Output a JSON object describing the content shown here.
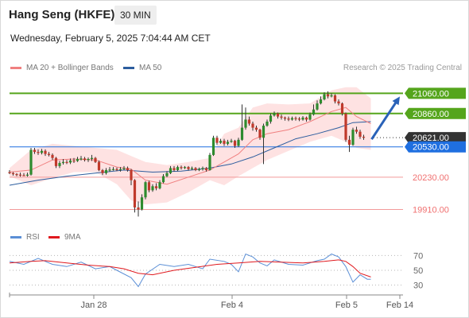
{
  "header": {
    "title": "Hang Seng (HKFE)",
    "timeframe": "30 MIN",
    "datetime": "Wednesday, February 5, 2025 7:04:44 AM CET"
  },
  "copyright": "Research © 2025 Trading Central",
  "colors": {
    "bull": "#2e8b2e",
    "bear": "#c0392b",
    "wick": "#333333",
    "ma20": "#f08080",
    "ma50": "#2c5d9e",
    "band": "#fdd8d8",
    "resistance": "#55a51c",
    "pivot": "#1f6fe0",
    "support": "#f07070",
    "last": "#333333",
    "arrow": "#2a62b8",
    "rsi": "#5b8fd6",
    "rsi_ma": "#e0191e"
  },
  "chart_data": [
    {
      "type": "candlestick",
      "timeframe": "30 MIN",
      "ylim": [
        19780,
        21260
      ],
      "x_ticks": [
        "Jan 28",
        "Feb 4",
        "Feb 5",
        "Feb 14"
      ],
      "legend": [
        {
          "label": "MA 20 + Bollinger Bands",
          "color": "#f08080"
        },
        {
          "label": "MA 50",
          "color": "#2c5d9e"
        }
      ],
      "levels": [
        {
          "value": 21060,
          "label": "21060.00",
          "kind": "resistance"
        },
        {
          "value": 20860,
          "label": "20860.00",
          "kind": "resistance"
        },
        {
          "value": 20621,
          "label": "20621.00",
          "kind": "last"
        },
        {
          "value": 20530,
          "label": "20530.00",
          "kind": "pivot"
        },
        {
          "value": 20230,
          "label": "20230.00",
          "kind": "support"
        },
        {
          "value": 19910,
          "label": "19910.00",
          "kind": "support"
        }
      ],
      "candles": [
        [
          20280,
          20270,
          20300,
          20260
        ],
        [
          20270,
          20260,
          20280,
          20245
        ],
        [
          20260,
          20255,
          20270,
          20240
        ],
        [
          20255,
          20250,
          20275,
          20235
        ],
        [
          20250,
          20245,
          20270,
          20240
        ],
        [
          20245,
          20255,
          20275,
          20235
        ],
        [
          20255,
          20500,
          20520,
          20245
        ],
        [
          20500,
          20480,
          20520,
          20460
        ],
        [
          20480,
          20470,
          20505,
          20450
        ],
        [
          20470,
          20490,
          20510,
          20455
        ],
        [
          20490,
          20460,
          20505,
          20440
        ],
        [
          20460,
          20450,
          20480,
          20435
        ],
        [
          20450,
          20420,
          20465,
          20400
        ],
        [
          20420,
          20340,
          20430,
          20320
        ],
        [
          20340,
          20370,
          20390,
          20320
        ],
        [
          20370,
          20380,
          20410,
          20355
        ],
        [
          20380,
          20375,
          20400,
          20360
        ],
        [
          20375,
          20395,
          20415,
          20360
        ],
        [
          20395,
          20390,
          20420,
          20370
        ],
        [
          20390,
          20410,
          20430,
          20380
        ],
        [
          20410,
          20415,
          20440,
          20395
        ],
        [
          20415,
          20400,
          20430,
          20385
        ],
        [
          20400,
          20410,
          20425,
          20380
        ],
        [
          20410,
          20420,
          20450,
          20390
        ],
        [
          20420,
          20380,
          20430,
          20370
        ],
        [
          20380,
          20300,
          20395,
          20290
        ],
        [
          20300,
          20270,
          20310,
          20250
        ],
        [
          20270,
          20300,
          20320,
          20255
        ],
        [
          20300,
          20305,
          20330,
          20285
        ],
        [
          20305,
          20310,
          20330,
          20295
        ],
        [
          20310,
          20300,
          20325,
          20290
        ],
        [
          20300,
          20310,
          20330,
          20285
        ],
        [
          20310,
          20320,
          20340,
          20300
        ],
        [
          20320,
          20300,
          20335,
          20285
        ],
        [
          20300,
          20200,
          20310,
          20150
        ],
        [
          20200,
          19930,
          20210,
          19880
        ],
        [
          19930,
          19910,
          19990,
          19840
        ],
        [
          19910,
          20030,
          20060,
          19900
        ],
        [
          20030,
          20180,
          20190,
          20010
        ],
        [
          20180,
          20100,
          20195,
          20080
        ],
        [
          20100,
          20140,
          20160,
          20085
        ],
        [
          20140,
          20120,
          20170,
          20100
        ],
        [
          20120,
          20180,
          20200,
          20110
        ],
        [
          20180,
          20240,
          20260,
          20170
        ],
        [
          20240,
          20270,
          20290,
          20230
        ],
        [
          20270,
          20320,
          20340,
          20260
        ],
        [
          20320,
          20300,
          20340,
          20285
        ],
        [
          20300,
          20330,
          20345,
          20290
        ],
        [
          20330,
          20320,
          20345,
          20305
        ],
        [
          20320,
          20330,
          20340,
          20310
        ],
        [
          20330,
          20310,
          20340,
          20295
        ],
        [
          20310,
          20320,
          20335,
          20300
        ],
        [
          20320,
          20300,
          20330,
          20290
        ],
        [
          20300,
          20310,
          20325,
          20290
        ],
        [
          20310,
          20320,
          20335,
          20295
        ],
        [
          20320,
          20300,
          20330,
          20285
        ],
        [
          20300,
          20450,
          20470,
          20295
        ],
        [
          20450,
          20620,
          20640,
          20440
        ],
        [
          20620,
          20570,
          20640,
          20550
        ],
        [
          20570,
          20590,
          20610,
          20560
        ],
        [
          20590,
          20560,
          20610,
          20540
        ],
        [
          20560,
          20580,
          20600,
          20545
        ],
        [
          20580,
          20590,
          20610,
          20570
        ],
        [
          20590,
          20540,
          20600,
          20520
        ],
        [
          20540,
          20600,
          20620,
          20530
        ],
        [
          20600,
          20720,
          20950,
          20590
        ],
        [
          20720,
          20800,
          20920,
          20700
        ],
        [
          20800,
          20760,
          20830,
          20740
        ],
        [
          20760,
          20720,
          20780,
          20690
        ],
        [
          20720,
          20700,
          20740,
          20680
        ],
        [
          20700,
          20620,
          20710,
          20600
        ],
        [
          20620,
          20740,
          20760,
          20360
        ],
        [
          20740,
          20780,
          20800,
          20730
        ],
        [
          20780,
          20840,
          20860,
          20760
        ],
        [
          20840,
          20860,
          20880,
          20830
        ],
        [
          20860,
          20830,
          20870,
          20810
        ],
        [
          20830,
          20820,
          20850,
          20800
        ],
        [
          20820,
          20810,
          20830,
          20790
        ],
        [
          20810,
          20800,
          20830,
          20785
        ],
        [
          20800,
          20815,
          20830,
          20790
        ],
        [
          20815,
          20810,
          20830,
          20790
        ],
        [
          20810,
          20800,
          20825,
          20785
        ],
        [
          20800,
          20820,
          20835,
          20790
        ],
        [
          20820,
          20800,
          20830,
          20780
        ],
        [
          20800,
          20850,
          20870,
          20790
        ],
        [
          20850,
          20900,
          20950,
          20840
        ],
        [
          20900,
          20960,
          20990,
          20890
        ],
        [
          20960,
          21000,
          21030,
          20950
        ],
        [
          21000,
          21050,
          21070,
          20990
        ],
        [
          21050,
          21030,
          21080,
          21010
        ],
        [
          21030,
          21040,
          21060,
          21020
        ],
        [
          21040,
          20980,
          21050,
          20960
        ],
        [
          20980,
          20960,
          21000,
          20940
        ],
        [
          20960,
          20860,
          20970,
          20840
        ],
        [
          20860,
          20600,
          20870,
          20580
        ],
        [
          20600,
          20550,
          20640,
          20480
        ],
        [
          20550,
          20700,
          20720,
          20540
        ],
        [
          20700,
          20680,
          20730,
          20660
        ],
        [
          20680,
          20630,
          20700,
          20610
        ],
        [
          20630,
          20621,
          20650,
          20600
        ]
      ],
      "ma20": [
        [
          0,
          20280
        ],
        [
          6,
          20300
        ],
        [
          12,
          20400
        ],
        [
          18,
          20410
        ],
        [
          24,
          20400
        ],
        [
          30,
          20330
        ],
        [
          34,
          20310
        ],
        [
          38,
          20200
        ],
        [
          44,
          20160
        ],
        [
          50,
          20230
        ],
        [
          56,
          20300
        ],
        [
          60,
          20380
        ],
        [
          64,
          20460
        ],
        [
          68,
          20600
        ],
        [
          72,
          20660
        ],
        [
          78,
          20700
        ],
        [
          84,
          20780
        ],
        [
          90,
          20880
        ],
        [
          94,
          20920
        ],
        [
          97,
          20830
        ],
        [
          101,
          20760
        ]
      ],
      "ma50": [
        [
          0,
          20150
        ],
        [
          8,
          20200
        ],
        [
          16,
          20240
        ],
        [
          24,
          20270
        ],
        [
          32,
          20300
        ],
        [
          40,
          20280
        ],
        [
          48,
          20290
        ],
        [
          56,
          20320
        ],
        [
          62,
          20360
        ],
        [
          68,
          20430
        ],
        [
          74,
          20520
        ],
        [
          80,
          20610
        ],
        [
          86,
          20660
        ],
        [
          92,
          20720
        ],
        [
          96,
          20770
        ],
        [
          101,
          20780
        ]
      ],
      "bb_upper": [
        [
          0,
          20320
        ],
        [
          6,
          20500
        ],
        [
          12,
          20560
        ],
        [
          18,
          20540
        ],
        [
          24,
          20520
        ],
        [
          30,
          20500
        ],
        [
          34,
          20440
        ],
        [
          38,
          20380
        ],
        [
          44,
          20350
        ],
        [
          50,
          20380
        ],
        [
          56,
          20420
        ],
        [
          60,
          20660
        ],
        [
          64,
          20720
        ],
        [
          68,
          20920
        ],
        [
          72,
          20960
        ],
        [
          78,
          20950
        ],
        [
          84,
          20960
        ],
        [
          90,
          21090
        ],
        [
          94,
          21120
        ],
        [
          97,
          21120
        ],
        [
          101,
          21010
        ]
      ],
      "bb_lower": [
        [
          0,
          20240
        ],
        [
          6,
          20150
        ],
        [
          12,
          20220
        ],
        [
          18,
          20280
        ],
        [
          24,
          20280
        ],
        [
          30,
          20160
        ],
        [
          34,
          20000
        ],
        [
          38,
          19960
        ],
        [
          44,
          19980
        ],
        [
          50,
          20080
        ],
        [
          56,
          20200
        ],
        [
          60,
          20150
        ],
        [
          64,
          20240
        ],
        [
          68,
          20320
        ],
        [
          72,
          20400
        ],
        [
          78,
          20490
        ],
        [
          84,
          20580
        ],
        [
          90,
          20640
        ],
        [
          94,
          20580
        ],
        [
          97,
          20520
        ],
        [
          101,
          20500
        ]
      ],
      "forecast": {
        "from": 20621,
        "to": 21060
      }
    },
    {
      "type": "line",
      "ylim": [
        20,
        80
      ],
      "y_ticks": [
        30,
        50,
        70
      ],
      "legend": [
        {
          "label": "RSI",
          "color": "#5b8fd6"
        },
        {
          "label": "9MA",
          "color": "#e0191e"
        }
      ],
      "series": [
        {
          "name": "RSI",
          "values": [
            [
              0,
              62
            ],
            [
              4,
              58
            ],
            [
              8,
              66
            ],
            [
              12,
              58
            ],
            [
              16,
              55
            ],
            [
              20,
              61
            ],
            [
              24,
              52
            ],
            [
              28,
              55
            ],
            [
              30,
              50
            ],
            [
              34,
              40
            ],
            [
              36,
              28
            ],
            [
              38,
              45
            ],
            [
              42,
              58
            ],
            [
              46,
              55
            ],
            [
              50,
              58
            ],
            [
              54,
              52
            ],
            [
              56,
              65
            ],
            [
              60,
              62
            ],
            [
              62,
              58
            ],
            [
              64,
              48
            ],
            [
              66,
              72
            ],
            [
              68,
              68
            ],
            [
              70,
              60
            ],
            [
              72,
              56
            ],
            [
              74,
              64
            ],
            [
              78,
              58
            ],
            [
              82,
              57
            ],
            [
              86,
              63
            ],
            [
              88,
              65
            ],
            [
              90,
              72
            ],
            [
              92,
              68
            ],
            [
              94,
              55
            ],
            [
              96,
              34
            ],
            [
              98,
              44
            ],
            [
              100,
              38
            ],
            [
              101,
              38
            ]
          ]
        },
        {
          "name": "9MA",
          "values": [
            [
              0,
              60
            ],
            [
              6,
              62
            ],
            [
              10,
              63
            ],
            [
              16,
              60
            ],
            [
              22,
              57
            ],
            [
              28,
              55
            ],
            [
              32,
              52
            ],
            [
              36,
              46
            ],
            [
              40,
              44
            ],
            [
              46,
              50
            ],
            [
              52,
              54
            ],
            [
              58,
              58
            ],
            [
              64,
              60
            ],
            [
              70,
              62
            ],
            [
              76,
              61
            ],
            [
              82,
              60
            ],
            [
              88,
              62
            ],
            [
              92,
              64
            ],
            [
              94,
              62
            ],
            [
              96,
              55
            ],
            [
              98,
              46
            ],
            [
              101,
              41
            ]
          ]
        }
      ]
    }
  ]
}
